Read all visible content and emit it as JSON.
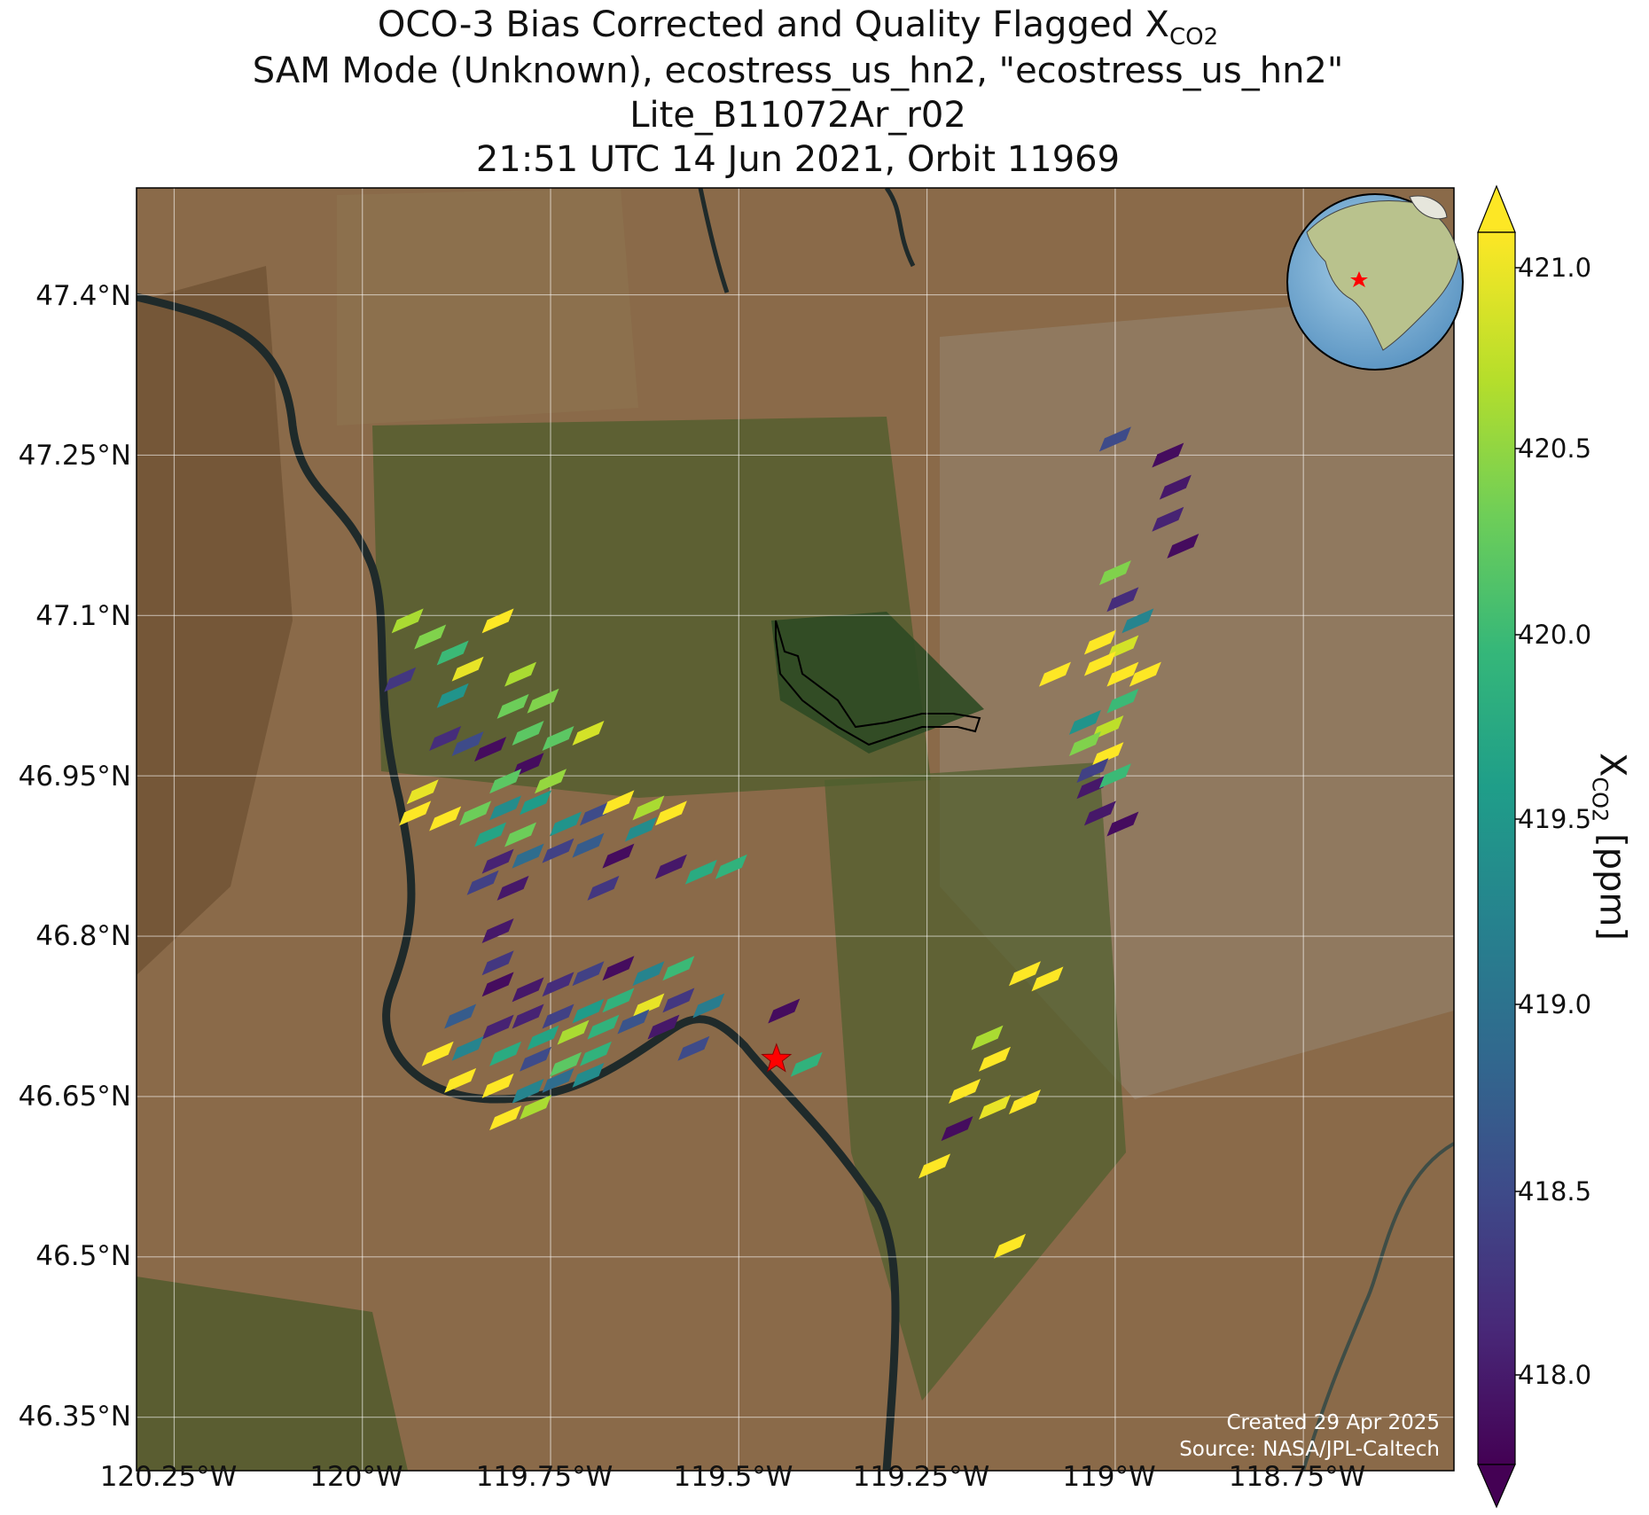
{
  "title": {
    "line1_prefix": "OCO-3 Bias Corrected and Quality Flagged X",
    "line1_sub": "CO2",
    "line2": "SAM Mode (Unknown), ecostress_us_hn2, \"ecostress_us_hn2\"",
    "line3": "Lite_B11072Ar_r02",
    "line4": "21:51 UTC 14 Jun 2021, Orbit 11969"
  },
  "axes": {
    "lat_ticks": [
      "47.4°N",
      "47.25°N",
      "47.1°N",
      "46.95°N",
      "46.8°N",
      "46.65°N",
      "46.5°N",
      "46.35°N"
    ],
    "lon_ticks": [
      "120.25°W",
      "120°W",
      "119.75°W",
      "119.5°W",
      "119.25°W",
      "119°W",
      "118.75°W"
    ]
  },
  "colorbar": {
    "label_prefix": "X",
    "label_sub": "CO2",
    "label_suffix": " [ppm]",
    "ticks": [
      "421.0",
      "420.5",
      "420.0",
      "419.5",
      "419.0",
      "418.5",
      "418.0"
    ],
    "range": [
      417.8,
      421.2
    ],
    "colormap": [
      "#440154",
      "#482878",
      "#3e4a89",
      "#31688e",
      "#26828e",
      "#1f9e89",
      "#35b779",
      "#6ece58",
      "#b5de2b",
      "#fde725"
    ]
  },
  "site_marker": {
    "color": "#ff0000",
    "icon": "star-icon"
  },
  "credits": {
    "line1": "Created 29 Apr 2025",
    "line2": "Source: NASA/JPL-Caltech"
  },
  "inset": {
    "icon": "globe-icon",
    "marker_color": "#ff0000"
  },
  "chart_data": {
    "type": "heatmap",
    "xlim": [
      -120.3,
      -118.55
    ],
    "ylim": [
      46.3,
      47.5
    ],
    "soundings": [
      {
        "lon": -119.94,
        "lat": 47.095,
        "xco2": 420.6
      },
      {
        "lon": -119.91,
        "lat": 47.08,
        "xco2": 420.4
      },
      {
        "lon": -119.88,
        "lat": 47.065,
        "xco2": 420.0
      },
      {
        "lon": -119.82,
        "lat": 47.095,
        "xco2": 421.0
      },
      {
        "lon": -119.95,
        "lat": 47.04,
        "xco2": 418.4
      },
      {
        "lon": -119.86,
        "lat": 47.05,
        "xco2": 420.9
      },
      {
        "lon": -119.88,
        "lat": 47.025,
        "xco2": 419.5
      },
      {
        "lon": -119.79,
        "lat": 47.045,
        "xco2": 420.6
      },
      {
        "lon": -119.8,
        "lat": 47.015,
        "xco2": 420.3
      },
      {
        "lon": -119.76,
        "lat": 47.02,
        "xco2": 420.4
      },
      {
        "lon": -119.78,
        "lat": 46.99,
        "xco2": 420.2
      },
      {
        "lon": -119.74,
        "lat": 46.985,
        "xco2": 420.2
      },
      {
        "lon": -119.7,
        "lat": 46.99,
        "xco2": 420.8
      },
      {
        "lon": -119.86,
        "lat": 46.98,
        "xco2": 418.6
      },
      {
        "lon": -119.83,
        "lat": 46.975,
        "xco2": 418.0
      },
      {
        "lon": -119.89,
        "lat": 46.985,
        "xco2": 418.3
      },
      {
        "lon": -119.78,
        "lat": 46.96,
        "xco2": 418.0
      },
      {
        "lon": -119.81,
        "lat": 46.945,
        "xco2": 420.2
      },
      {
        "lon": -119.75,
        "lat": 46.945,
        "xco2": 420.5
      },
      {
        "lon": -119.92,
        "lat": 46.935,
        "xco2": 420.9
      },
      {
        "lon": -119.93,
        "lat": 46.915,
        "xco2": 421.0
      },
      {
        "lon": -119.89,
        "lat": 46.91,
        "xco2": 421.0
      },
      {
        "lon": -119.85,
        "lat": 46.915,
        "xco2": 420.3
      },
      {
        "lon": -119.81,
        "lat": 46.92,
        "xco2": 419.4
      },
      {
        "lon": -119.77,
        "lat": 46.925,
        "xco2": 419.6
      },
      {
        "lon": -119.83,
        "lat": 46.895,
        "xco2": 419.7
      },
      {
        "lon": -119.79,
        "lat": 46.895,
        "xco2": 420.3
      },
      {
        "lon": -119.73,
        "lat": 46.905,
        "xco2": 419.5
      },
      {
        "lon": -119.69,
        "lat": 46.915,
        "xco2": 418.6
      },
      {
        "lon": -119.66,
        "lat": 46.925,
        "xco2": 421.0
      },
      {
        "lon": -119.62,
        "lat": 46.92,
        "xco2": 420.6
      },
      {
        "lon": -119.59,
        "lat": 46.915,
        "xco2": 421.0
      },
      {
        "lon": -119.63,
        "lat": 46.9,
        "xco2": 419.4
      },
      {
        "lon": -119.7,
        "lat": 46.885,
        "xco2": 418.8
      },
      {
        "lon": -119.74,
        "lat": 46.88,
        "xco2": 418.5
      },
      {
        "lon": -119.66,
        "lat": 46.875,
        "xco2": 418.0
      },
      {
        "lon": -119.82,
        "lat": 46.87,
        "xco2": 418.2
      },
      {
        "lon": -119.78,
        "lat": 46.875,
        "xco2": 419.0
      },
      {
        "lon": -119.84,
        "lat": 46.85,
        "xco2": 418.5
      },
      {
        "lon": -119.8,
        "lat": 46.845,
        "xco2": 418.1
      },
      {
        "lon": -119.68,
        "lat": 46.845,
        "xco2": 418.4
      },
      {
        "lon": -119.59,
        "lat": 46.865,
        "xco2": 418.1
      },
      {
        "lon": -119.55,
        "lat": 46.86,
        "xco2": 419.8
      },
      {
        "lon": -119.51,
        "lat": 46.865,
        "xco2": 419.9
      },
      {
        "lon": -119.82,
        "lat": 46.805,
        "xco2": 418.1
      },
      {
        "lon": -119.82,
        "lat": 46.775,
        "xco2": 418.4
      },
      {
        "lon": -119.82,
        "lat": 46.755,
        "xco2": 418.0
      },
      {
        "lon": -119.78,
        "lat": 46.75,
        "xco2": 418.1
      },
      {
        "lon": -119.74,
        "lat": 46.755,
        "xco2": 418.3
      },
      {
        "lon": -119.7,
        "lat": 46.765,
        "xco2": 418.5
      },
      {
        "lon": -119.66,
        "lat": 46.77,
        "xco2": 418.0
      },
      {
        "lon": -119.62,
        "lat": 46.765,
        "xco2": 419.3
      },
      {
        "lon": -119.58,
        "lat": 46.77,
        "xco2": 420.0
      },
      {
        "lon": -119.78,
        "lat": 46.725,
        "xco2": 418.2
      },
      {
        "lon": -119.74,
        "lat": 46.725,
        "xco2": 418.5
      },
      {
        "lon": -119.7,
        "lat": 46.73,
        "xco2": 419.6
      },
      {
        "lon": -119.66,
        "lat": 46.74,
        "xco2": 419.9
      },
      {
        "lon": -119.62,
        "lat": 46.735,
        "xco2": 420.9
      },
      {
        "lon": -119.58,
        "lat": 46.74,
        "xco2": 418.4
      },
      {
        "lon": -119.54,
        "lat": 46.735,
        "xco2": 419.2
      },
      {
        "lon": -119.87,
        "lat": 46.725,
        "xco2": 418.8
      },
      {
        "lon": -119.82,
        "lat": 46.715,
        "xco2": 418.2
      },
      {
        "lon": -119.76,
        "lat": 46.705,
        "xco2": 419.7
      },
      {
        "lon": -119.72,
        "lat": 46.71,
        "xco2": 420.6
      },
      {
        "lon": -119.68,
        "lat": 46.715,
        "xco2": 419.9
      },
      {
        "lon": -119.64,
        "lat": 46.72,
        "xco2": 418.7
      },
      {
        "lon": -119.6,
        "lat": 46.715,
        "xco2": 418.1
      },
      {
        "lon": -119.9,
        "lat": 46.69,
        "xco2": 421.0
      },
      {
        "lon": -119.86,
        "lat": 46.695,
        "xco2": 419.3
      },
      {
        "lon": -119.81,
        "lat": 46.69,
        "xco2": 419.8
      },
      {
        "lon": -119.77,
        "lat": 46.685,
        "xco2": 418.6
      },
      {
        "lon": -119.73,
        "lat": 46.68,
        "xco2": 420.2
      },
      {
        "lon": -119.69,
        "lat": 46.69,
        "xco2": 419.9
      },
      {
        "lon": -119.56,
        "lat": 46.695,
        "xco2": 418.6
      },
      {
        "lon": -119.87,
        "lat": 46.665,
        "xco2": 421.0
      },
      {
        "lon": -119.82,
        "lat": 46.66,
        "xco2": 421.0
      },
      {
        "lon": -119.78,
        "lat": 46.655,
        "xco2": 419.3
      },
      {
        "lon": -119.74,
        "lat": 46.665,
        "xco2": 419.0
      },
      {
        "lon": -119.7,
        "lat": 46.67,
        "xco2": 419.4
      },
      {
        "lon": -119.81,
        "lat": 46.63,
        "xco2": 421.0
      },
      {
        "lon": -119.77,
        "lat": 46.64,
        "xco2": 420.6
      },
      {
        "lon": -119.44,
        "lat": 46.73,
        "xco2": 418.0
      },
      {
        "lon": -119.41,
        "lat": 46.68,
        "xco2": 419.9
      },
      {
        "lon": -119.0,
        "lat": 47.265,
        "xco2": 418.6
      },
      {
        "lon": -118.93,
        "lat": 47.25,
        "xco2": 418.0
      },
      {
        "lon": -118.92,
        "lat": 47.22,
        "xco2": 418.1
      },
      {
        "lon": -118.93,
        "lat": 47.19,
        "xco2": 418.2
      },
      {
        "lon": -118.91,
        "lat": 47.165,
        "xco2": 418.0
      },
      {
        "lon": -119.0,
        "lat": 47.14,
        "xco2": 420.4
      },
      {
        "lon": -118.99,
        "lat": 47.115,
        "xco2": 418.3
      },
      {
        "lon": -118.97,
        "lat": 47.095,
        "xco2": 419.3
      },
      {
        "lon": -119.02,
        "lat": 47.075,
        "xco2": 421.0
      },
      {
        "lon": -118.99,
        "lat": 47.07,
        "xco2": 420.8
      },
      {
        "lon": -119.02,
        "lat": 47.055,
        "xco2": 421.0
      },
      {
        "lon": -118.99,
        "lat": 47.045,
        "xco2": 421.0
      },
      {
        "lon": -118.96,
        "lat": 47.045,
        "xco2": 421.0
      },
      {
        "lon": -119.08,
        "lat": 47.045,
        "xco2": 421.0
      },
      {
        "lon": -118.99,
        "lat": 47.02,
        "xco2": 420.0
      },
      {
        "lon": -119.04,
        "lat": 47.0,
        "xco2": 419.5
      },
      {
        "lon": -119.01,
        "lat": 46.995,
        "xco2": 420.7
      },
      {
        "lon": -119.04,
        "lat": 46.98,
        "xco2": 420.4
      },
      {
        "lon": -119.01,
        "lat": 46.97,
        "xco2": 421.0
      },
      {
        "lon": -119.03,
        "lat": 46.955,
        "xco2": 418.5
      },
      {
        "lon": -119.03,
        "lat": 46.94,
        "xco2": 418.1
      },
      {
        "lon": -119.0,
        "lat": 46.95,
        "xco2": 420.0
      },
      {
        "lon": -119.02,
        "lat": 46.915,
        "xco2": 418.1
      },
      {
        "lon": -118.99,
        "lat": 46.905,
        "xco2": 418.0
      },
      {
        "lon": -119.12,
        "lat": 46.765,
        "xco2": 421.0
      },
      {
        "lon": -119.09,
        "lat": 46.76,
        "xco2": 421.0
      },
      {
        "lon": -119.17,
        "lat": 46.705,
        "xco2": 420.6
      },
      {
        "lon": -119.16,
        "lat": 46.685,
        "xco2": 421.0
      },
      {
        "lon": -119.2,
        "lat": 46.655,
        "xco2": 421.0
      },
      {
        "lon": -119.16,
        "lat": 46.64,
        "xco2": 420.9
      },
      {
        "lon": -119.12,
        "lat": 46.645,
        "xco2": 421.0
      },
      {
        "lon": -119.21,
        "lat": 46.62,
        "xco2": 418.0
      },
      {
        "lon": -119.24,
        "lat": 46.585,
        "xco2": 421.0
      },
      {
        "lon": -119.14,
        "lat": 46.51,
        "xco2": 421.0
      }
    ],
    "site": {
      "lon": -119.45,
      "lat": 46.685
    }
  }
}
